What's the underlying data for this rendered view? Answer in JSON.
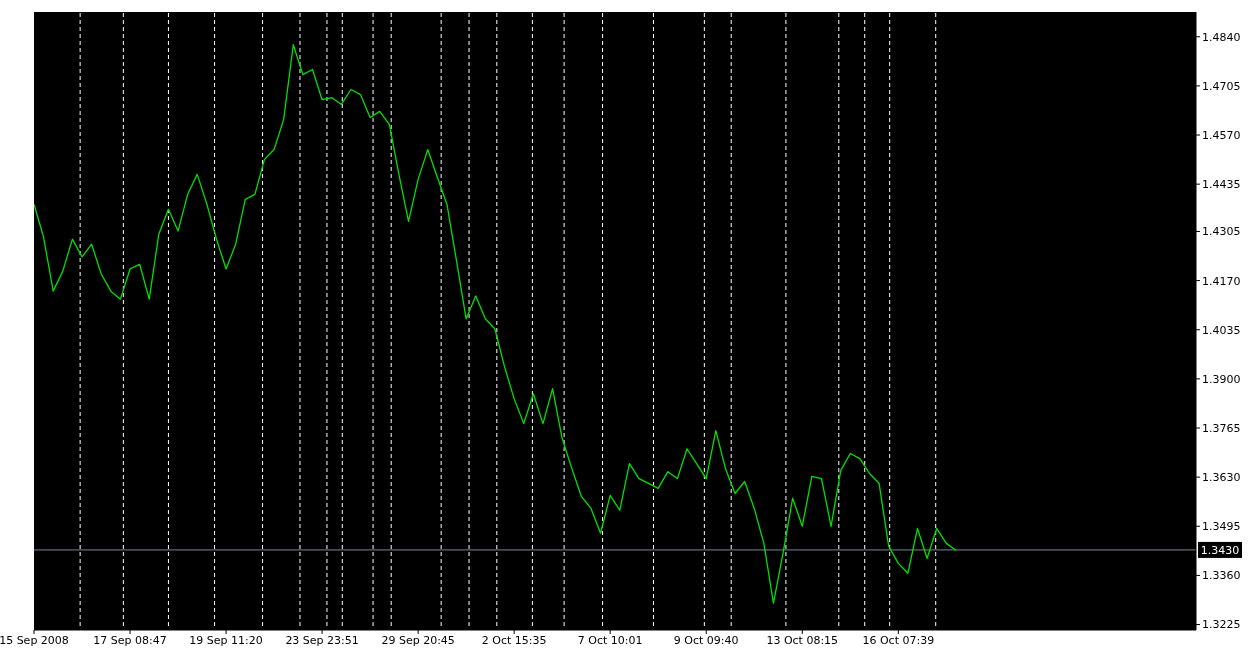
{
  "chart_data": {
    "type": "line",
    "categories": [
      "15 Sep 2008",
      null,
      null,
      null,
      null,
      null,
      null,
      null,
      null,
      null,
      "17 Sep 08:47",
      null,
      null,
      null,
      null,
      null,
      null,
      null,
      null,
      null,
      "19 Sep 11:20",
      null,
      null,
      null,
      null,
      null,
      null,
      null,
      null,
      null,
      "23 Sep 23:51",
      null,
      null,
      null,
      null,
      null,
      null,
      null,
      null,
      null,
      "29 Sep 20:45",
      null,
      null,
      null,
      null,
      null,
      null,
      null,
      null,
      null,
      "2 Oct 15:35",
      null,
      null,
      null,
      null,
      null,
      null,
      null,
      null,
      null,
      "7 Oct 10:01",
      null,
      null,
      null,
      null,
      null,
      null,
      null,
      null,
      null,
      "9 Oct 09:40",
      null,
      null,
      null,
      null,
      null,
      null,
      null,
      null,
      null,
      "13 Oct 08:15",
      null,
      null,
      null,
      null,
      null,
      null,
      null,
      null,
      null,
      "16 Oct 07:39",
      null,
      null,
      null,
      null,
      null,
      null,
      null,
      null,
      null,
      null,
      null,
      null,
      null,
      null,
      null,
      null,
      null,
      null,
      null,
      null,
      null,
      null,
      null,
      null,
      null,
      null,
      null,
      null,
      null,
      null,
      null
    ],
    "series": [
      {
        "color": "#00e000",
        "values": [
          1.438,
          1.4289,
          1.4141,
          1.4196,
          1.4284,
          1.4235,
          1.427,
          1.4188,
          1.4141,
          1.4119,
          1.4202,
          1.4215,
          1.4119,
          1.4298,
          1.4366,
          1.4306,
          1.4407,
          1.4462,
          1.438,
          1.4284,
          1.4202,
          1.427,
          1.4393,
          1.4407,
          1.4503,
          1.453,
          1.4613,
          1.4818,
          1.4736,
          1.475,
          1.4667,
          1.4673,
          1.4654,
          1.4695,
          1.4681,
          1.4618,
          1.4635,
          1.4599,
          1.4462,
          1.4333,
          1.4448,
          1.453,
          1.4454,
          1.438,
          1.4224,
          1.4065,
          1.4128,
          1.4065,
          1.4037,
          1.3933,
          1.3845,
          1.3777,
          1.3859,
          1.3777,
          1.3873,
          1.3736,
          1.3654,
          1.3577,
          1.3544,
          1.3476,
          1.358,
          1.3539,
          1.3667,
          1.3626,
          1.3613,
          1.3599,
          1.3645,
          1.3626,
          1.3708,
          1.3667,
          1.3626,
          1.3758,
          1.3654,
          1.3585,
          1.3618,
          1.3544,
          1.3448,
          1.3284,
          1.3421,
          1.3572,
          1.3495,
          1.3632,
          1.3626,
          1.3495,
          1.3648,
          1.3695,
          1.3681,
          1.364,
          1.3613,
          1.344,
          1.3393,
          1.3366,
          1.3489,
          1.3407,
          1.3489,
          1.3448,
          1.3429,
          null,
          null,
          null,
          null,
          null,
          null,
          null,
          null,
          null,
          null,
          null,
          null,
          null,
          null,
          null,
          null,
          null,
          null,
          null,
          null,
          null,
          null,
          null,
          null,
          null
        ]
      }
    ],
    "ylim": [
      1.321,
      1.4908
    ],
    "yticks": [
      {
        "value": 1.484,
        "label": "1.4840"
      },
      {
        "value": 1.4705,
        "label": "1.4705"
      },
      {
        "value": 1.457,
        "label": "1.4570"
      },
      {
        "value": 1.4435,
        "label": "1.4435"
      },
      {
        "value": 1.4305,
        "label": "1.4305"
      },
      {
        "value": 1.417,
        "label": "1.4170"
      },
      {
        "value": 1.4035,
        "label": "1.4035"
      },
      {
        "value": 1.39,
        "label": "1.3900"
      },
      {
        "value": 1.3765,
        "label": "1.3765"
      },
      {
        "value": 1.363,
        "label": "1.3630"
      },
      {
        "value": 1.3495,
        "label": "1.3495"
      },
      {
        "value": 1.336,
        "label": "1.3360"
      },
      {
        "value": 1.3225,
        "label": "1.3225"
      }
    ],
    "line_style": "solid",
    "ref_lines": [
      {
        "axis": "y",
        "value": 1.343,
        "label": "1.3430",
        "color": "#778899",
        "line_style": "solid"
      }
    ]
  }
}
